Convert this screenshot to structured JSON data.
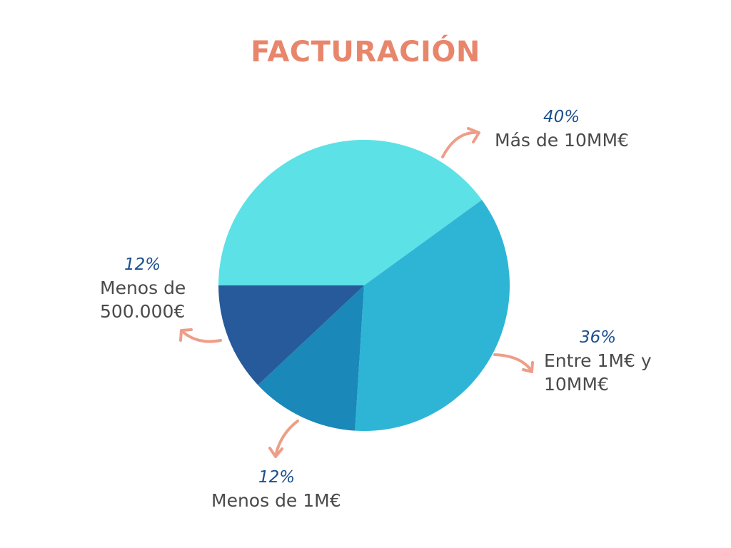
{
  "chart_data": {
    "type": "pie",
    "title": "FACTURACIÓN",
    "slices": [
      {
        "label": "Más de 10MM€",
        "value": 40,
        "value_label": "40%",
        "color": "#5CE1E6"
      },
      {
        "label": "Entre 1M€ y 10MM€",
        "value": 36,
        "value_label": "36%",
        "color": "#2EB5D6"
      },
      {
        "label": "Menos de 1M€",
        "value": 12,
        "value_label": "12%",
        "color": "#1A88B8"
      },
      {
        "label": "Menos de 500.000€",
        "value": 12,
        "value_label": "12%",
        "color": "#275A9A"
      }
    ],
    "label_colors": {
      "percent": "#1B4F8F",
      "text": "#4A4A4A",
      "title": "#E8866C",
      "arrows": "#EE9E88"
    }
  }
}
